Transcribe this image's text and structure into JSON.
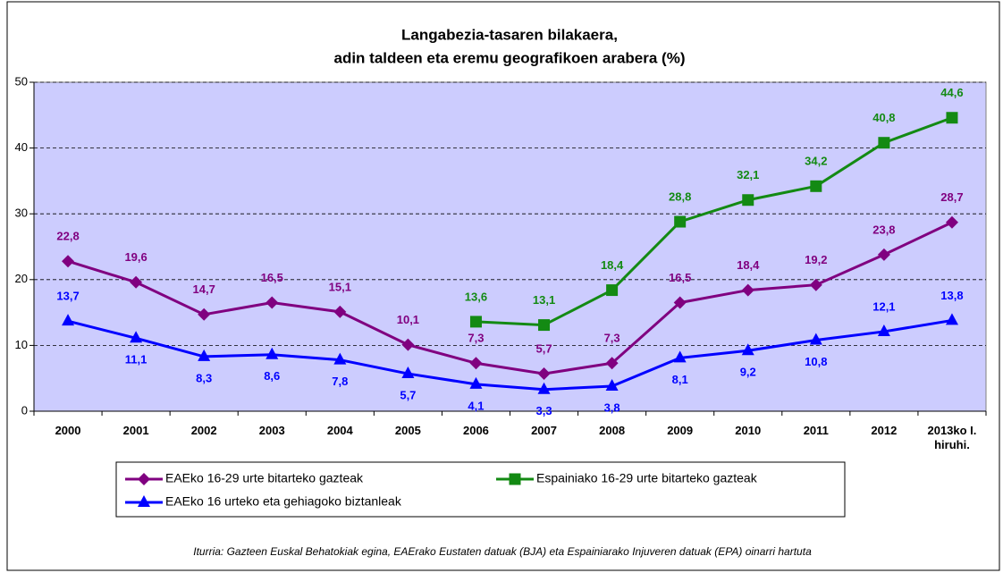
{
  "chart_data": {
    "type": "line",
    "title": "Langabezia-tasaren bilakaera,",
    "subtitle": "adin taldeen eta eremu geografikoen arabera (%)",
    "categories": [
      "2000",
      "2001",
      "2002",
      "2003",
      "2004",
      "2005",
      "2006",
      "2007",
      "2008",
      "2009",
      "2010",
      "2011",
      "2012",
      "2013ko I. hiruhi."
    ],
    "series": [
      {
        "name": "EAEko 16-29 urte bitarteko gazteak",
        "color": "#800080",
        "marker": "diamond",
        "values": [
          22.8,
          19.6,
          14.7,
          16.5,
          15.1,
          10.1,
          7.3,
          5.7,
          7.3,
          16.5,
          18.4,
          19.2,
          23.8,
          28.7
        ],
        "value_labels": [
          "22,8",
          "19,6",
          "14,7",
          "16,5",
          "15,1",
          "10,1",
          "7,3",
          "5,7",
          "7,3",
          "16,5",
          "18,4",
          "19,2",
          "23,8",
          "28,7"
        ]
      },
      {
        "name": "Espainiako 16-29 urte bitarteko gazteak",
        "color": "#138a13",
        "marker": "square",
        "values": [
          null,
          null,
          null,
          null,
          null,
          null,
          13.6,
          13.1,
          18.4,
          28.8,
          32.1,
          34.2,
          40.8,
          44.6
        ],
        "value_labels": [
          null,
          null,
          null,
          null,
          null,
          null,
          "13,6",
          "13,1",
          "18,4",
          "28,8",
          "32,1",
          "34,2",
          "40,8",
          "44,6"
        ]
      },
      {
        "name": "EAEko 16 urteko eta gehiagoko biztanleak",
        "color": "#0000ff",
        "marker": "triangle",
        "values": [
          13.7,
          11.1,
          8.3,
          8.6,
          7.8,
          5.7,
          4.1,
          3.3,
          3.8,
          8.1,
          9.2,
          10.8,
          12.1,
          13.8
        ],
        "value_labels": [
          "13,7",
          "11,1",
          "8,3",
          "8,6",
          "7,8",
          "5,7",
          "4,1",
          "3,3",
          "3,8",
          "8,1",
          "9,2",
          "10,8",
          "12,1",
          "13,8"
        ]
      }
    ],
    "ylim": [
      0,
      50
    ],
    "yticks": [
      0,
      10,
      20,
      30,
      40,
      50
    ],
    "grid": true,
    "legend": "bottom",
    "note": "Iturria: Gazteen Euskal Behatokiak egina, EAErako Eustaten datuak (BJA) eta Espainiarako Injuveren datuak (EPA) oinarri hartuta"
  }
}
